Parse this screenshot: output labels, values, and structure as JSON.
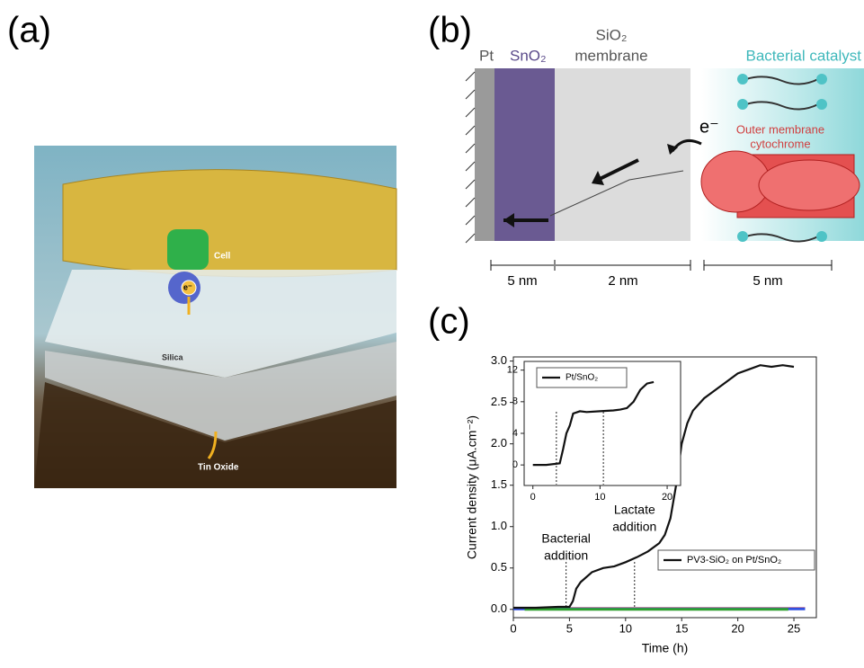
{
  "panel_a": {
    "label": "(a)",
    "cell": "Cell",
    "electron": "e⁻",
    "silica": "Silica",
    "tin_oxide": "Tin Oxide"
  },
  "panel_b": {
    "label": "(b)",
    "pt": "Pt",
    "sno2": "SnO₂",
    "sio2": "SiO₂",
    "membrane": "membrane",
    "bacterial": "Bacterial catalyst",
    "electron": "e⁻",
    "outer": "Outer membrane",
    "cytochrome": "cytochrome",
    "dim1": "5 nm",
    "dim2": "2 nm",
    "dim3": "5 nm"
  },
  "panel_c": {
    "label": "(c)"
  },
  "chart_data": [
    {
      "type": "line",
      "xlabel": "Time (h)",
      "ylabel": "Current density (μA.cm⁻²)",
      "legend": "lower right",
      "xlim": [
        0,
        27
      ],
      "ylim": [
        -0.1,
        3.05
      ],
      "xticks": [
        0,
        5,
        10,
        15,
        20,
        25
      ],
      "yticks": [
        {
          "value": 0,
          "label": "0.0"
        },
        {
          "value": 0.5,
          "label": "0.5"
        },
        {
          "value": 1,
          "label": "1.0"
        },
        {
          "value": 1.5,
          "label": "1.5"
        },
        {
          "value": 2,
          "label": "2.0"
        },
        {
          "value": 2.5,
          "label": "2.5"
        },
        {
          "value": 3,
          "label": "3.0"
        }
      ],
      "annotations": [
        {
          "text": [
            "Bacterial",
            "addition"
          ],
          "x": 4.7
        },
        {
          "text": [
            "Lactate",
            "addition"
          ],
          "x": 10.8
        }
      ],
      "series": [
        {
          "color": "#e03030",
          "x": [
            0,
            26
          ],
          "values": [
            0.01,
            0.01
          ]
        },
        {
          "color": "#3050e0",
          "x": [
            0,
            26
          ],
          "values": [
            0.005,
            0.005
          ]
        },
        {
          "color": "#30a030",
          "x": [
            1,
            24.5
          ],
          "values": [
            0.0,
            0.0
          ]
        },
        {
          "name": "PV3-SiO₂ on Pt/SnO₂",
          "color": "#111111",
          "x": [
            0,
            2,
            4,
            5,
            5.3,
            5.6,
            6,
            7,
            8,
            9,
            10,
            11,
            12,
            13,
            13.5,
            14,
            14.5,
            15,
            15.5,
            16,
            17,
            18,
            19,
            20,
            21,
            22,
            23,
            24,
            25
          ],
          "values": [
            0.02,
            0.02,
            0.03,
            0.03,
            0.1,
            0.25,
            0.33,
            0.45,
            0.5,
            0.52,
            0.57,
            0.63,
            0.7,
            0.8,
            0.9,
            1.1,
            1.5,
            2.0,
            2.25,
            2.4,
            2.55,
            2.65,
            2.75,
            2.85,
            2.9,
            2.95,
            2.93,
            2.95,
            2.93
          ]
        }
      ]
    },
    {
      "type": "line",
      "legend": "upper left",
      "xlim": [
        -1.3,
        22
      ],
      "ylim": [
        -2.6,
        13.1
      ],
      "xticks": [
        0,
        10,
        20
      ],
      "yticks": [
        0,
        4,
        8,
        12
      ],
      "annotations": [
        {
          "x": 3.5
        },
        {
          "x": 10.5
        }
      ],
      "series": [
        {
          "name": "Pt/SnO₂",
          "color": "#111111",
          "x": [
            0,
            2,
            4,
            4.5,
            5,
            5.5,
            6,
            7,
            8,
            10,
            12,
            13,
            14,
            15,
            16,
            17,
            18
          ],
          "values": [
            0,
            0,
            0.2,
            2,
            4,
            5,
            6.5,
            6.8,
            6.7,
            6.8,
            6.9,
            7,
            7.2,
            8,
            9.5,
            10.3,
            10.5
          ]
        }
      ]
    }
  ]
}
